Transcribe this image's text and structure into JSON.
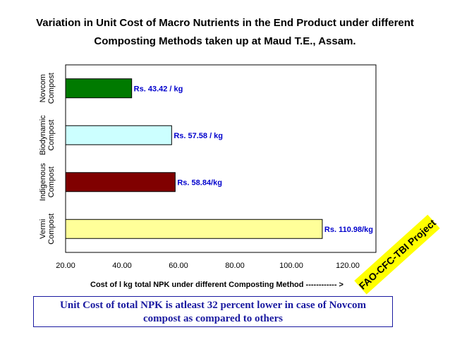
{
  "header": {
    "title_line1": "Variation in Unit Cost of Macro Nutrients in the End Product under different",
    "title_line2": "Composting Methods taken up at Maud T.E., Assam."
  },
  "chart_data": {
    "type": "bar",
    "orientation": "horizontal",
    "title": "Variation in Unit Cost of Macro Nutrients in the End Product under different Composting Methods taken up at Maud T.E., Assam.",
    "xlabel": "Cost of l kg total NPK under different Composting Method ------------ >",
    "ylabel": "",
    "xlim": [
      20,
      130
    ],
    "xticks": [
      "20.00",
      "40.00",
      "60.00",
      "80.00",
      "100.00",
      "120.00"
    ],
    "categories": [
      [
        "Novcom",
        "Compost"
      ],
      [
        "Biodynamic",
        "Compost"
      ],
      [
        "Indigenous",
        "Compost"
      ],
      [
        "Vermi",
        "Compost"
      ]
    ],
    "values": [
      43.42,
      57.58,
      58.84,
      110.98
    ],
    "data_labels": [
      "Rs. 43.42 / kg",
      "Rs. 57.58 / kg",
      "Rs. 58.84/kg",
      "Rs. 110.98/kg"
    ],
    "colors": [
      "#007a00",
      "#ccffff",
      "#800000",
      "#ffff99"
    ],
    "label_color": "#0000cc",
    "grid": false
  },
  "footer": {
    "line1": "Unit Cost of total NPK is atleast 32 percent lower in case of Novcom",
    "line2": "compost as compared to others"
  },
  "stamp": {
    "text": "FAO-CFC-TBI Project"
  }
}
